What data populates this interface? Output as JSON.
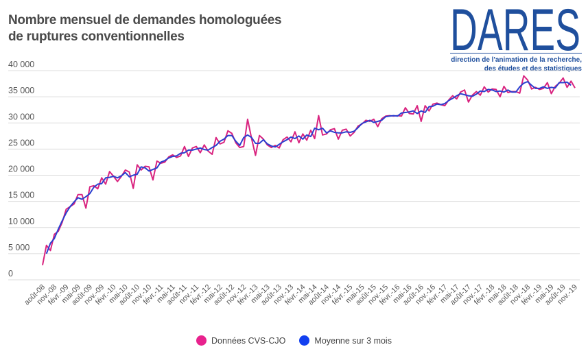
{
  "title_line1": "Nombre mensuel de demandes homologuées",
  "title_line2": "de ruptures conventionnelles",
  "logo": {
    "word": "DARES",
    "sub_line1": "direction de l'animation de la recherche,",
    "sub_line2": "des études et des statistiques",
    "color": "#1f4f9d"
  },
  "chart_data": {
    "type": "line",
    "frequency": "monthly",
    "period": [
      "août-08",
      "nov.-19"
    ],
    "ylim": [
      0,
      40000
    ],
    "yticks": [
      "0",
      "5 000",
      "10 000",
      "15 000",
      "20 000",
      "25 000",
      "30 000",
      "35 000",
      "40 000"
    ],
    "grid": true,
    "legend_position": "bottom",
    "xtick_labels": [
      "août-08",
      "nov.-08",
      "févr.-09",
      "mai-09",
      "août-09",
      "nov.-09",
      "févr.-10",
      "mai-10",
      "août-10",
      "nov.-10",
      "févr.-11",
      "mai-11",
      "août-11",
      "nov.-11",
      "févr.-12",
      "mai-12",
      "août-12",
      "nov.-12",
      "févr.-13",
      "mai-13",
      "août-13",
      "nov.-13",
      "févr.-14",
      "mai-14",
      "août-14",
      "nov.-14",
      "févr.-15",
      "mai-15",
      "août-15",
      "nov.-15",
      "févr.-16",
      "mai-16",
      "août-16",
      "nov.-16",
      "févr.-17",
      "mai-17",
      "août-17",
      "nov.-17",
      "févr.-18",
      "mai-18",
      "août-18",
      "nov.-18",
      "févr.-19",
      "mai-19",
      "août-19",
      "nov.-19"
    ],
    "series": [
      {
        "name": "Données CVS-CJO",
        "color": "#d9237f",
        "legend_color": "#e8228d",
        "values": [
          2800,
          6600,
          5600,
          8700,
          9300,
          11000,
          13500,
          14000,
          14500,
          16300,
          16300,
          13700,
          17800,
          18000,
          17400,
          19500,
          18300,
          20700,
          19800,
          18800,
          19800,
          21000,
          20600,
          17500,
          22000,
          21000,
          21700,
          21600,
          19100,
          22700,
          22300,
          22500,
          23500,
          23900,
          23400,
          23700,
          25500,
          23600,
          25200,
          25500,
          24300,
          25800,
          24600,
          24000,
          27200,
          26000,
          26300,
          28500,
          28000,
          26200,
          25300,
          25500,
          30700,
          27000,
          23800,
          27600,
          26900,
          25800,
          25300,
          25700,
          25200,
          26800,
          27300,
          26400,
          28300,
          26200,
          27900,
          26700,
          28600,
          27000,
          31400,
          27700,
          27900,
          28700,
          28900,
          26900,
          28600,
          28800,
          27500,
          28200,
          29400,
          29800,
          30500,
          30300,
          30700,
          29300,
          30800,
          31300,
          31400,
          31300,
          31400,
          31300,
          32900,
          31800,
          31700,
          33300,
          30300,
          33300,
          32300,
          33600,
          33800,
          33500,
          33300,
          34400,
          35200,
          34600,
          35900,
          36300,
          34000,
          35300,
          36000,
          35300,
          36900,
          35900,
          36500,
          36400,
          35000,
          37000,
          35800,
          36000,
          36000,
          35700,
          39000,
          38200,
          36500,
          36800,
          36400,
          36600,
          37700,
          35600,
          37000,
          37600,
          38600,
          36800,
          38000,
          36700
        ]
      },
      {
        "name": "Moyenne sur 3 mois",
        "color": "#2b3fcf",
        "legend_color": "#1240f0",
        "values": [
          null,
          5000,
          7000,
          7900,
          9700,
          11300,
          12800,
          14000,
          14900,
          15700,
          15400,
          15900,
          16500,
          17700,
          18300,
          18400,
          19500,
          19600,
          19800,
          19500,
          19900,
          20500,
          19700,
          20000,
          20200,
          21600,
          21400,
          20800,
          21100,
          21400,
          22500,
          22800,
          23300,
          23600,
          23700,
          24200,
          24300,
          24800,
          24800,
          25000,
          25200,
          24900,
          24800,
          25300,
          25700,
          26500,
          26900,
          27600,
          27600,
          26500,
          25700,
          27200,
          27700,
          27200,
          26100,
          26100,
          26800,
          26000,
          25600,
          25400,
          25900,
          26400,
          26800,
          27300,
          27000,
          27500,
          26900,
          27700,
          27400,
          29000,
          28700,
          29000,
          28100,
          28500,
          28200,
          28100,
          28100,
          28300,
          28200,
          28400,
          29100,
          29900,
          30200,
          30500,
          30100,
          30300,
          30500,
          31200,
          31300,
          31400,
          31300,
          31900,
          32000,
          32100,
          32300,
          31800,
          32300,
          32000,
          33100,
          33200,
          33600,
          33500,
          33700,
          34300,
          34700,
          35200,
          35600,
          35400,
          35200,
          35100,
          35500,
          36100,
          36000,
          36400,
          36300,
          36000,
          36100,
          35900,
          36300,
          35900,
          35900,
          36900,
          37600,
          37900,
          37200,
          36600,
          36600,
          36900,
          36600,
          36800,
          36700,
          37700,
          37700,
          37800,
          37200,
          null
        ]
      }
    ]
  }
}
